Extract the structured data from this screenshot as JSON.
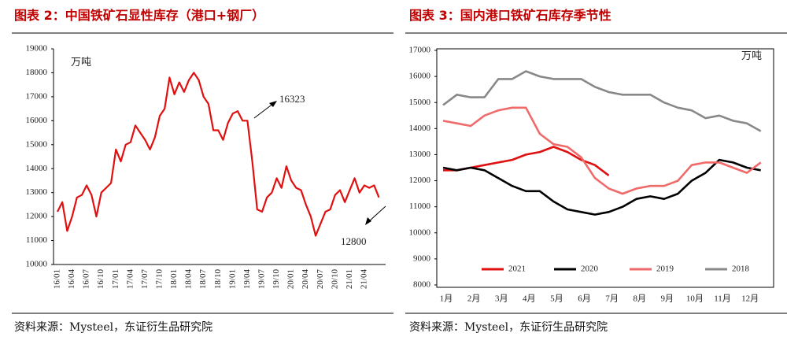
{
  "chart_data": [
    {
      "type": "line",
      "title": "图表 2：中国铁矿石显性库存（港口+钢厂）",
      "source": "资料来源：Mysteel，东证衍生品研究院",
      "annotations": [
        "万吨",
        "16323",
        "12800"
      ],
      "color": "#e01010",
      "categories": [
        "16/01",
        null,
        null,
        "16/04",
        null,
        null,
        "16/07",
        null,
        null,
        "16/10",
        null,
        null,
        "17/01",
        null,
        null,
        "17/04",
        null,
        null,
        "17/07",
        null,
        null,
        "17/10",
        null,
        null,
        "18/01",
        null,
        null,
        "18/04",
        null,
        null,
        "18/07",
        null,
        null,
        "18/10",
        null,
        null,
        "19/01",
        null,
        null,
        "19/04",
        null,
        null,
        "19/07",
        null,
        null,
        "19/10",
        null,
        null,
        "20/01",
        null,
        null,
        "20/04",
        null,
        null,
        "20/07",
        null,
        null,
        "20/10",
        null,
        null,
        "21/01",
        null,
        null,
        "21/04",
        null,
        null,
        null
      ],
      "values": [
        12200,
        12600,
        11400,
        12000,
        12800,
        12900,
        13300,
        12900,
        12000,
        13000,
        13200,
        13400,
        14800,
        14300,
        15000,
        15100,
        15800,
        15500,
        15200,
        14800,
        15300,
        16200,
        16500,
        17800,
        17100,
        17600,
        17200,
        17700,
        18000,
        17700,
        17000,
        16700,
        15600,
        15600,
        15200,
        15900,
        16300,
        16400,
        16000,
        16000,
        14300,
        12300,
        12200,
        12800,
        13000,
        13600,
        13200,
        14100,
        13500,
        13200,
        13100,
        12500,
        12000,
        11200,
        11700,
        12200,
        12300,
        12900,
        13100,
        12600,
        13100,
        13600,
        13000,
        13300,
        13200,
        13300,
        12800
      ],
      "ylim": [
        10000,
        19000
      ],
      "yticks": [
        10000,
        11000,
        12000,
        13000,
        14000,
        15000,
        16000,
        17000,
        18000,
        19000
      ]
    },
    {
      "type": "line",
      "title": "图表 3：国内港口铁矿石库存季节性",
      "source": "资料来源：Mysteel，东证衍生品研究院",
      "annotations": [
        "万吨"
      ],
      "legend": "lower center",
      "categories": [
        "1月",
        null,
        "2月",
        null,
        "3月",
        null,
        "4月",
        null,
        "5月",
        null,
        "6月",
        null,
        "7月",
        null,
        "8月",
        null,
        "9月",
        null,
        "10月",
        null,
        "11月",
        null,
        "12月",
        null
      ],
      "series": [
        {
          "name": "2021",
          "color": "#e01010",
          "values": [
            12400,
            12400,
            12500,
            12600,
            12700,
            12800,
            13000,
            13100,
            13300,
            13100,
            12800,
            12600,
            12200,
            null,
            null,
            null,
            null,
            null,
            null,
            null,
            null,
            null,
            null,
            null
          ]
        },
        {
          "name": "2020",
          "color": "#000000",
          "values": [
            12500,
            12400,
            12500,
            12400,
            12100,
            11800,
            11600,
            11600,
            11200,
            10900,
            10800,
            10700,
            10800,
            11000,
            11300,
            11400,
            11300,
            11500,
            12000,
            12300,
            12800,
            12700,
            12500,
            12400
          ]
        },
        {
          "name": "2019",
          "color": "#f06a6a",
          "values": [
            14300,
            14200,
            14100,
            14500,
            14700,
            14800,
            14800,
            13800,
            13400,
            13300,
            12900,
            12100,
            11700,
            11500,
            11700,
            11800,
            11800,
            12000,
            12600,
            12700,
            12700,
            12500,
            12300,
            12700
          ]
        },
        {
          "name": "2018",
          "color": "#888888",
          "values": [
            14900,
            15300,
            15200,
            15200,
            15900,
            15900,
            16200,
            16000,
            15900,
            15900,
            15900,
            15600,
            15400,
            15300,
            15300,
            15300,
            15000,
            14800,
            14700,
            14400,
            14500,
            14300,
            14200,
            13900
          ]
        }
      ],
      "ylim": [
        8000,
        17000
      ],
      "yticks": [
        8000,
        9000,
        10000,
        11000,
        12000,
        13000,
        14000,
        15000,
        16000,
        17000
      ]
    }
  ]
}
